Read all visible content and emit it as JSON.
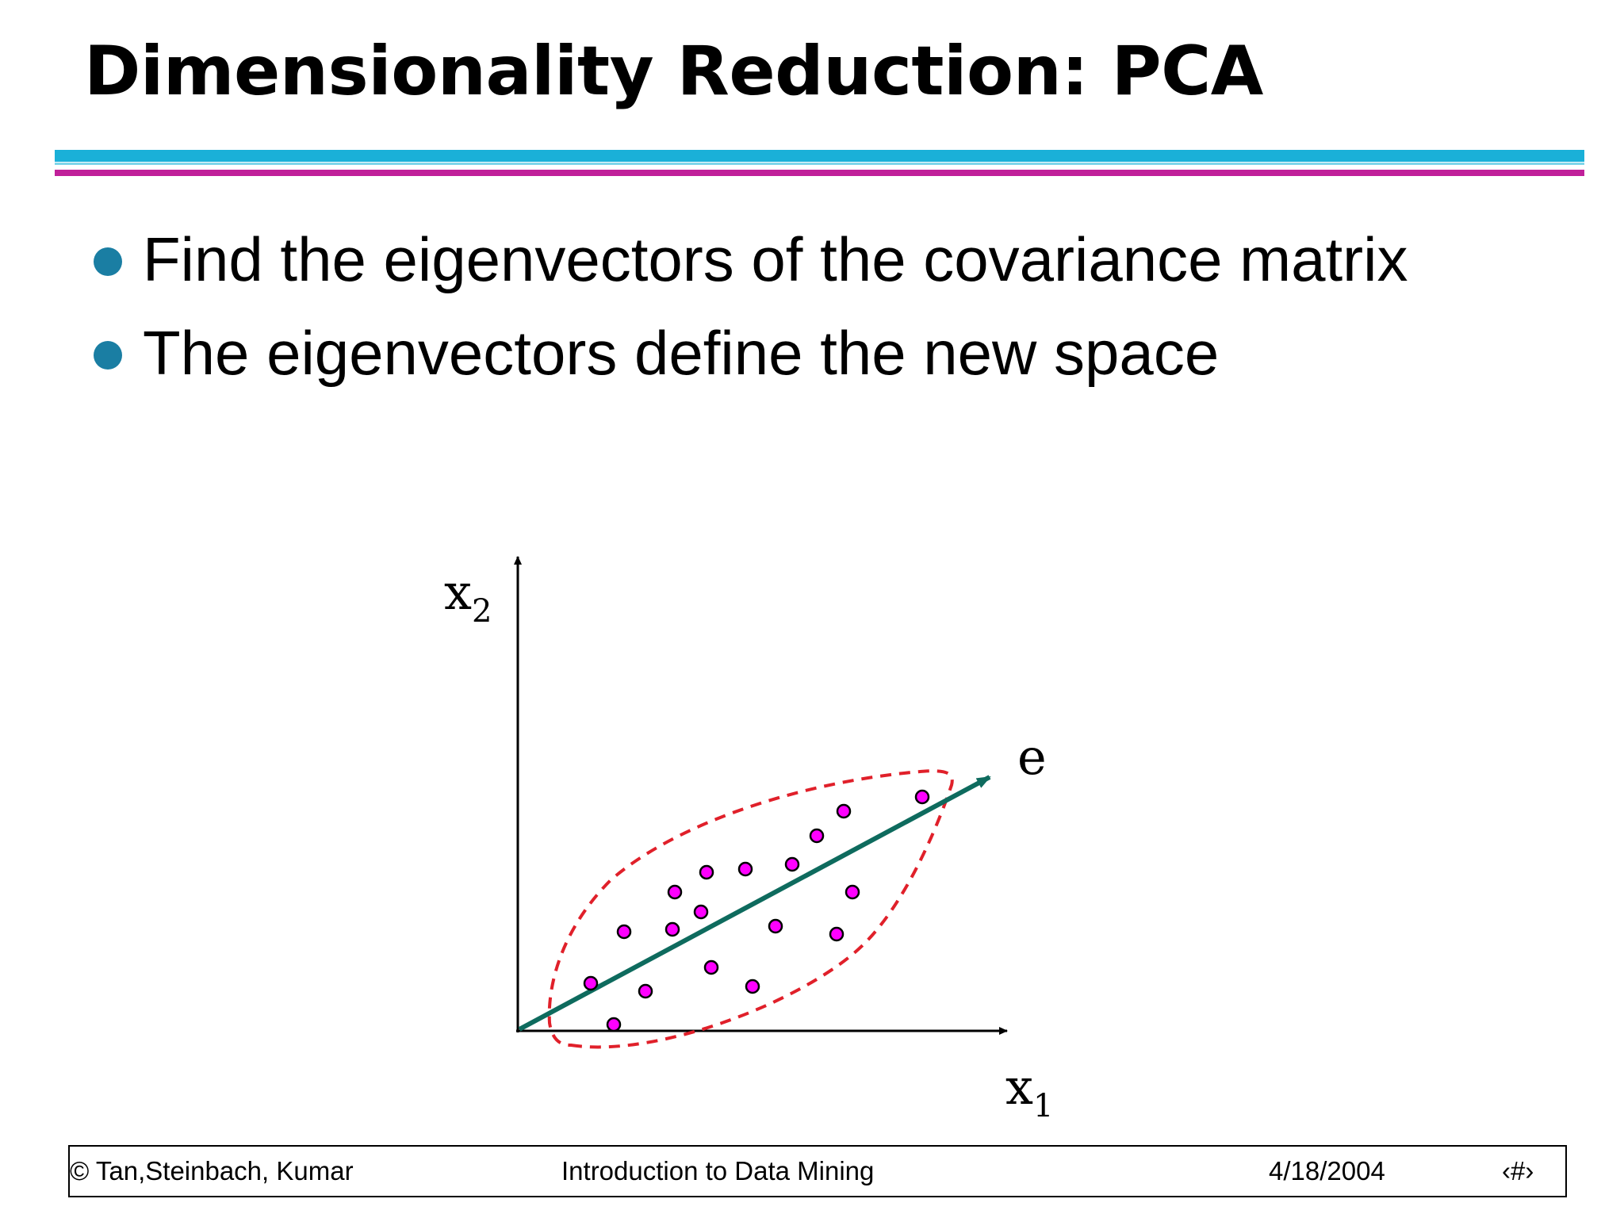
{
  "slide": {
    "title": "Dimensionality Reduction: PCA",
    "bullets": [
      "Find the eigenvectors of the covariance matrix",
      "The eigenvectors define the new space"
    ]
  },
  "diagram": {
    "x_axis_label": "x",
    "x_axis_subscript": "1",
    "y_axis_label": "x",
    "y_axis_subscript": "2",
    "vector_label": "e",
    "colors": {
      "points": "#ff00ff",
      "vector": "#0e6b5e",
      "ellipse": "#e0202a",
      "bullet": "#1a7ea3",
      "rule_cyan": "#1ab0d8",
      "rule_magenta": "#c0209a"
    }
  },
  "footer": {
    "copyright": "© Tan,Steinbach, Kumar",
    "course": "Introduction to Data Mining",
    "date": "4/18/2004",
    "page": "‹#›"
  }
}
